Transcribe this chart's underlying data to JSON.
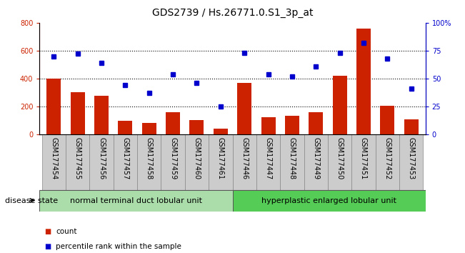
{
  "title": "GDS2739 / Hs.26771.0.S1_3p_at",
  "samples": [
    "GSM177454",
    "GSM177455",
    "GSM177456",
    "GSM177457",
    "GSM177458",
    "GSM177459",
    "GSM177460",
    "GSM177461",
    "GSM177446",
    "GSM177447",
    "GSM177448",
    "GSM177449",
    "GSM177450",
    "GSM177451",
    "GSM177452",
    "GSM177453"
  ],
  "counts": [
    400,
    300,
    275,
    95,
    80,
    155,
    100,
    40,
    370,
    120,
    130,
    155,
    420,
    760,
    205,
    105
  ],
  "percentiles": [
    70,
    72,
    64,
    44,
    37,
    54,
    46,
    25,
    73,
    54,
    52,
    61,
    73,
    82,
    68,
    41
  ],
  "group1_label": "normal terminal duct lobular unit",
  "group2_label": "hyperplastic enlarged lobular unit",
  "group1_count": 8,
  "group2_count": 8,
  "ylim_left": [
    0,
    800
  ],
  "ylim_right": [
    0,
    100
  ],
  "yticks_left": [
    0,
    200,
    400,
    600,
    800
  ],
  "yticks_right": [
    0,
    25,
    50,
    75,
    100
  ],
  "bar_color": "#CC2200",
  "dot_color": "#0000CC",
  "group1_bg": "#AADDAA",
  "group2_bg": "#55CC55",
  "xtick_bg": "#CCCCCC",
  "disease_state_label": "disease state",
  "legend_count_label": "count",
  "legend_percentile_label": "percentile rank within the sample",
  "title_fontsize": 10,
  "tick_fontsize": 7,
  "right_axis_label_color": "#0000CC",
  "left_axis_label_color": "#CC2200"
}
